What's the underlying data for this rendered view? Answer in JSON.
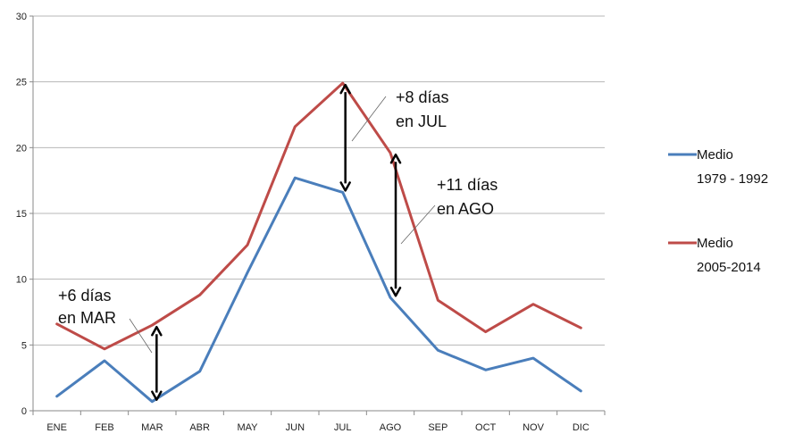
{
  "chart_data": {
    "type": "line",
    "categories": [
      "ENE",
      "FEB",
      "MAR",
      "ABR",
      "MAY",
      "JUN",
      "JUL",
      "AGO",
      "SEP",
      "OCT",
      "NOV",
      "DIC"
    ],
    "ylim": [
      0,
      30
    ],
    "yticks": [
      0,
      5,
      10,
      15,
      20,
      25,
      30
    ],
    "grid": true,
    "legend_position": "right",
    "series": [
      {
        "name": "Medio 1979 - 1992",
        "label_lines": [
          "Medio",
          "1979 - 1992"
        ],
        "color": "#4a7ebb",
        "values": [
          1.1,
          3.8,
          0.7,
          3.0,
          10.5,
          17.7,
          16.6,
          8.6,
          4.6,
          3.1,
          4.0,
          1.5
        ]
      },
      {
        "name": "Medio 2005-2014",
        "label_lines": [
          "Medio",
          "2005-2014"
        ],
        "color": "#be4b48",
        "values": [
          6.6,
          4.7,
          6.5,
          8.8,
          12.6,
          21.6,
          24.9,
          19.6,
          8.4,
          6.0,
          8.1,
          6.3
        ]
      }
    ],
    "annotations": [
      {
        "id": "mar",
        "lines": [
          "+6 días",
          "en MAR"
        ],
        "month": "MAR",
        "from": 0.7,
        "to": 6.5
      },
      {
        "id": "jul",
        "lines": [
          "+8 días",
          "en JUL"
        ],
        "month": "JUL",
        "from": 16.6,
        "to": 24.9
      },
      {
        "id": "ago",
        "lines": [
          "+11 días",
          "en AGO"
        ],
        "month": "AGO",
        "from": 8.6,
        "to": 19.6
      }
    ]
  }
}
